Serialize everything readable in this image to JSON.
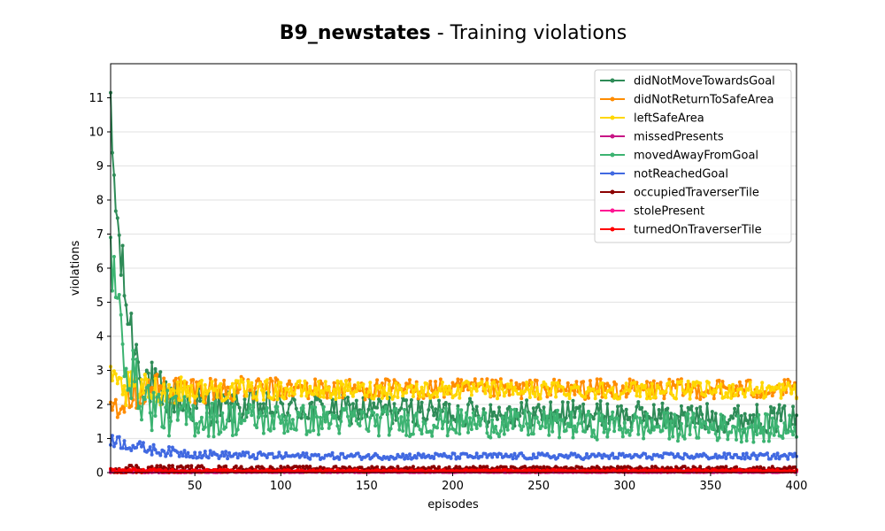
{
  "chart_data": {
    "type": "line",
    "title_bold": "B9_newstates",
    "title_rest": " - Training violations",
    "xlabel": "episodes",
    "ylabel": "violations",
    "xlim": [
      1,
      400
    ],
    "ylim": [
      0,
      12
    ],
    "xticks": [
      50,
      100,
      150,
      200,
      250,
      300,
      350,
      400
    ],
    "yticks": [
      0,
      1,
      2,
      3,
      4,
      5,
      6,
      7,
      8,
      9,
      10,
      11
    ],
    "grid": "horizontal",
    "legend_position": "top-right",
    "series": [
      {
        "name": "didNotMoveTowardsGoal",
        "color": "#2e8b57",
        "start": 10.2,
        "tau": 9,
        "end": 1.95,
        "slope": -0.0011,
        "noise": 0.42
      },
      {
        "name": "didNotReturnToSafeArea",
        "color": "#ff8c00",
        "start": 1.8,
        "tau": 3,
        "end": 2.45,
        "slope": 0,
        "noise": 0.3
      },
      {
        "name": "leftSafeArea",
        "color": "#ffd700",
        "start": 2.5,
        "tau": 3,
        "end": 2.42,
        "slope": 0,
        "noise": 0.26
      },
      {
        "name": "missedPresents",
        "color": "#c71585",
        "start": 0.05,
        "tau": 5,
        "end": 0.03,
        "slope": 0,
        "noise": 0.02
      },
      {
        "name": "movedAwayFromGoal",
        "color": "#3cb371",
        "start": 6.5,
        "tau": 9,
        "end": 1.6,
        "slope": -0.0009,
        "noise": 0.42
      },
      {
        "name": "notReachedGoal",
        "color": "#4169e1",
        "start": 1.0,
        "tau": 25,
        "end": 0.48,
        "slope": 0,
        "noise": 0.09
      },
      {
        "name": "occupiedTraverserTile",
        "color": "#8b0000",
        "start": 0.12,
        "tau": 5,
        "end": 0.12,
        "slope": 0,
        "noise": 0.06
      },
      {
        "name": "stolePresent",
        "color": "#ff1493",
        "start": 0.03,
        "tau": 5,
        "end": 0.02,
        "slope": 0,
        "noise": 0.015
      },
      {
        "name": "turnedOnTraverserTile",
        "color": "#ff0000",
        "start": 0.06,
        "tau": 5,
        "end": 0.05,
        "slope": 0,
        "noise": 0.03
      }
    ]
  }
}
